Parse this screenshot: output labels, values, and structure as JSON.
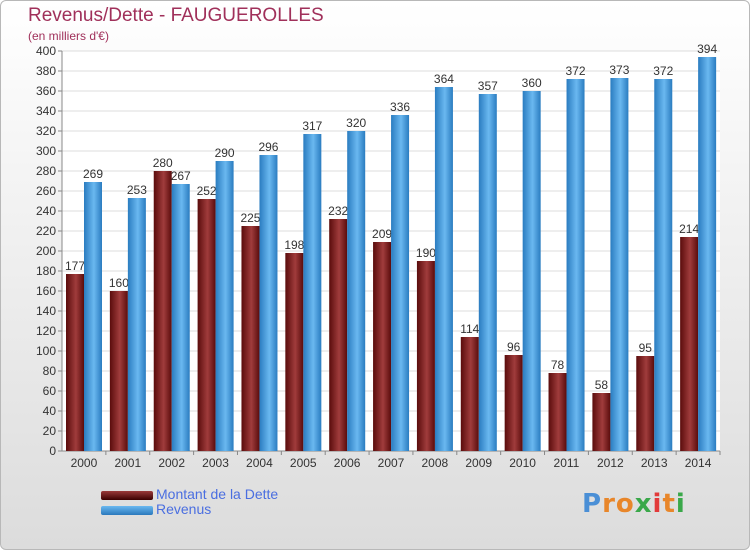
{
  "chart_data": {
    "type": "bar",
    "title": "Revenus/Dette - FAUGUEROLLES",
    "subtitle": "(en milliers d'€)",
    "categories": [
      "2000",
      "2001",
      "2002",
      "2003",
      "2004",
      "2005",
      "2006",
      "2007",
      "2008",
      "2009",
      "2010",
      "2011",
      "2012",
      "2013",
      "2014"
    ],
    "series": [
      {
        "name": "Montant de la Dette",
        "color": "#7a1c1c",
        "values": [
          177,
          160,
          280,
          252,
          225,
          198,
          232,
          209,
          190,
          114,
          96,
          78,
          58,
          95,
          214
        ]
      },
      {
        "name": "Revenus",
        "color": "#3e9ee0",
        "values": [
          269,
          253,
          267,
          290,
          296,
          317,
          320,
          336,
          364,
          357,
          360,
          372,
          373,
          372,
          394
        ]
      }
    ],
    "ylim": [
      0,
      400
    ],
    "ytick_step": 20,
    "grid": true,
    "legend_position": "bottom-left"
  },
  "logo": {
    "letters": [
      "P",
      "r",
      "o",
      "x",
      "i",
      "t",
      "i"
    ],
    "colors": [
      "#4a8fd6",
      "#e8862a",
      "#e8862a",
      "#3aa84a",
      "#e23a3a",
      "#e8862a",
      "#3aa84a"
    ]
  }
}
